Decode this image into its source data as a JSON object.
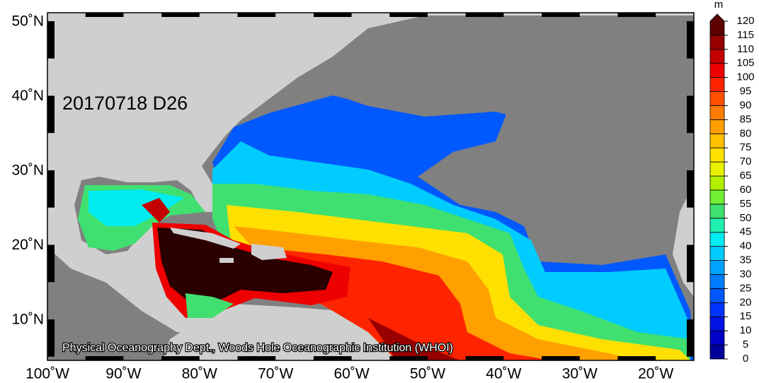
{
  "map": {
    "lat_labels": [
      "50˚N",
      "40˚N",
      "30˚N",
      "20˚N",
      "10˚N"
    ],
    "lon_labels": [
      "100˚W",
      "90˚W",
      "80˚W",
      "70˚W",
      "60˚W",
      "50˚W",
      "40˚W",
      "30˚W",
      "20˚W"
    ],
    "date_label": "20170718 D26",
    "credit": "Physical Oceanography Dept., Woods Hole Oceanographic Institution (WHOI)"
  },
  "colorbar": {
    "unit": "m",
    "lim": [
      0,
      120
    ],
    "ticks": [
      0,
      5,
      10,
      15,
      20,
      25,
      30,
      35,
      40,
      45,
      50,
      55,
      60,
      65,
      70,
      75,
      80,
      85,
      90,
      95,
      100,
      105,
      110,
      115,
      120
    ],
    "colors": [
      "#00009a",
      "#0000c8",
      "#0014e6",
      "#0034ff",
      "#0058ff",
      "#007cff",
      "#00a4ff",
      "#00ccff",
      "#00ecf0",
      "#20f0b0",
      "#40e070",
      "#70f030",
      "#b0f000",
      "#e8f000",
      "#ffe000",
      "#ffc000",
      "#ffa000",
      "#ff7c00",
      "#ff5000",
      "#ff2400",
      "#ee0000",
      "#c40000",
      "#980000",
      "#5c0000"
    ]
  }
}
